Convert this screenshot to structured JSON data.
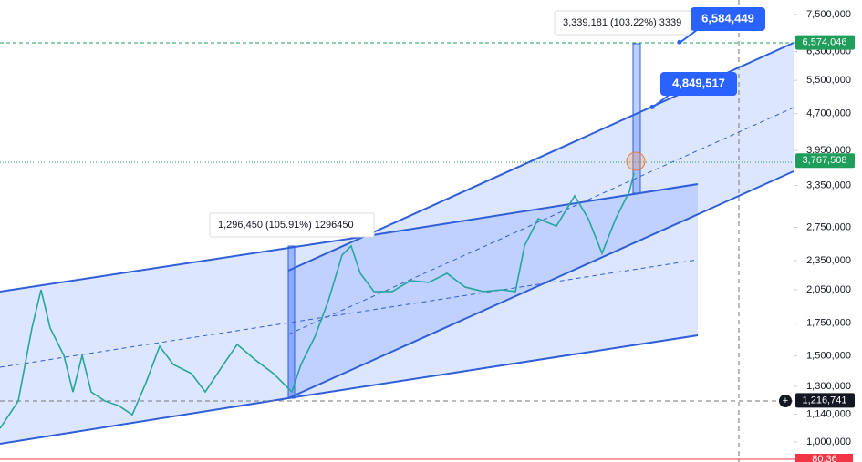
{
  "chart_data": {
    "type": "line",
    "yscale": "log",
    "ylim": [
      910000,
      8030000
    ],
    "xlim": [
      0,
      174
    ],
    "yticks": [
      {
        "value": 7500000,
        "label": "7,500,000"
      },
      {
        "value": 6300000,
        "label": "6,300,000"
      },
      {
        "value": 5500000,
        "label": "5,500,000"
      },
      {
        "value": 4700000,
        "label": "4,700,000"
      },
      {
        "value": 3950000,
        "label": "3,950,000"
      },
      {
        "value": 3350000,
        "label": "3,350,000"
      },
      {
        "value": 2750000,
        "label": "2,750,000"
      },
      {
        "value": 2350000,
        "label": "2,350,000"
      },
      {
        "value": 2050000,
        "label": "2,050,000"
      },
      {
        "value": 1750000,
        "label": "1,750,000"
      },
      {
        "value": 1500000,
        "label": "1,500,000"
      },
      {
        "value": 1300000,
        "label": "1,300,000"
      },
      {
        "value": 1140000,
        "label": "1,140,000"
      },
      {
        "value": 1000000,
        "label": "1,000,000"
      }
    ],
    "series": [
      {
        "color": "#26a69a",
        "x": [
          0,
          4,
          7,
          9,
          11,
          14,
          16,
          18,
          20,
          23,
          26,
          29,
          32,
          35,
          38,
          42,
          45,
          49,
          52,
          56,
          60,
          64,
          66,
          69,
          72,
          75,
          77,
          79,
          82,
          86,
          90,
          94,
          98,
          102,
          106,
          110,
          113,
          115,
          118,
          122,
          126,
          129,
          132,
          135,
          138,
          139
        ],
        "values": [
          1066000,
          1213000,
          1711000,
          2049000,
          1711000,
          1504000,
          1266000,
          1504000,
          1266000,
          1213000,
          1187000,
          1137000,
          1322000,
          1570000,
          1441000,
          1380000,
          1266000,
          1441000,
          1584000,
          1472000,
          1380000,
          1266000,
          1441000,
          1639000,
          1946000,
          2413000,
          2519000,
          2214000,
          2032000,
          2032000,
          2139000,
          2121000,
          2214000,
          2075000,
          2032000,
          2049000,
          2032000,
          2519000,
          2864000,
          2767000,
          3190000,
          2864000,
          2433000,
          2864000,
          3258000,
          3550000
        ]
      }
    ],
    "price_labels": [
      {
        "value": 6574046,
        "label": "6,574,046",
        "color": "#1e9e5a"
      },
      {
        "value": 3767508,
        "label": "3,767,508",
        "color": "#1e9e5a"
      },
      {
        "value": 1216741,
        "label": "1,216,741",
        "color": "#131722"
      }
    ],
    "callouts": [
      {
        "value": 6584449,
        "label": "6,584,449"
      },
      {
        "value": 4849517,
        "label": "4,849,517"
      }
    ],
    "measure_labels": [
      "1,296,450 (105.91%) 1296450",
      "3,339,181 (103.22%) 3339"
    ],
    "indicator_label": "80.36"
  }
}
